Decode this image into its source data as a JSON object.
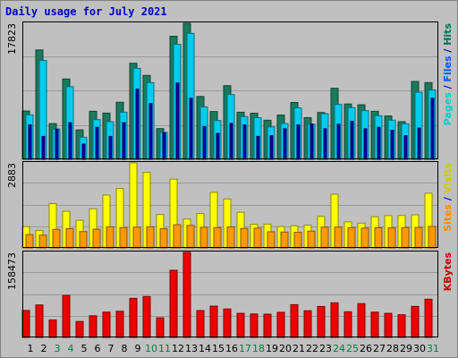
{
  "chart_data": {
    "type": "bar",
    "title": "Daily usage for July 2021",
    "categories": [
      "1",
      "2",
      "3",
      "4",
      "5",
      "6",
      "7",
      "8",
      "9",
      "10",
      "11",
      "12",
      "13",
      "14",
      "15",
      "16",
      "17",
      "18",
      "19",
      "20",
      "21",
      "22",
      "23",
      "24",
      "25",
      "26",
      "27",
      "28",
      "29",
      "30",
      "31"
    ],
    "weekend_days": [
      "3",
      "4",
      "10",
      "11",
      "17",
      "18",
      "24",
      "25",
      "31"
    ],
    "panels": [
      {
        "name": "hits",
        "ymax_label": "17823",
        "ylim": [
          0,
          17823
        ],
        "grid": true,
        "side_label": [
          {
            "text": "Pages",
            "color": "#00cccc"
          },
          {
            "text": " / ",
            "color": "#0000aa"
          },
          {
            "text": "Files",
            "color": "#0055ff"
          },
          {
            "text": " / ",
            "color": "#0000aa"
          },
          {
            "text": "Hits",
            "color": "#006f55"
          }
        ],
        "series": [
          {
            "name": "Hits",
            "color": "#1a7a5c",
            "values": [
              6325,
              14330,
              4675,
              10520,
              3850,
              6290,
              6050,
              7480,
              12580,
              10990,
              4020,
              16120,
              17823,
              8230,
              6260,
              9650,
              6170,
              6040,
              5120,
              5800,
              7440,
              5460,
              6130,
              9300,
              7250,
              7140,
              6290,
              5680,
              4930,
              10200,
              10050
            ]
          },
          {
            "name": "Files",
            "color": "#00ccee",
            "values": [
              5830,
              12940,
              3960,
              9510,
              2890,
              5200,
              4930,
              6180,
              11920,
              10050,
              3520,
              15060,
              16500,
              6860,
              5080,
              8480,
              5600,
              5450,
              4240,
              4680,
              6740,
              4620,
              5970,
              7190,
              6770,
              6380,
              5710,
              5120,
              4660,
              8790,
              9080
            ]
          },
          {
            "name": "Pages",
            "color": "#0000aa",
            "values": [
              4500,
              3000,
              3960,
              4800,
              2000,
              4200,
              3000,
              4800,
              9200,
              7300,
              3500,
              10000,
              8000,
              4300,
              3400,
              4700,
              4500,
              3000,
              3100,
              4000,
              4500,
              4600,
              4000,
              4600,
              5000,
              4000,
              4200,
              3800,
              3100,
              4100,
              8000
            ]
          }
        ]
      },
      {
        "name": "visits",
        "ymax_label": "2883",
        "ylim": [
          0,
          2883
        ],
        "grid": true,
        "side_label": [
          {
            "text": "Sites",
            "color": "#ff8800"
          },
          {
            "text": " / ",
            "color": "#0000aa"
          },
          {
            "text": "Visits",
            "color": "#cccc00"
          }
        ],
        "series": [
          {
            "name": "Visits",
            "color": "#ffff00",
            "values": [
              722,
              597,
              1503,
              1243,
              938,
              1327,
              1791,
              2014,
              2883,
              2560,
              1132,
              2332,
              979,
              1166,
              1884,
              1659,
              1210,
              798,
              808,
              723,
              751,
              770,
              1066,
              1820,
              883,
              840,
              1057,
              1095,
              1100,
              1121,
              1853
            ]
          },
          {
            "name": "Sites",
            "color": "#ff9900",
            "values": [
              452,
              433,
              630,
              652,
              554,
              634,
              718,
              690,
              705,
              719,
              650,
              786,
              764,
              700,
              688,
              713,
              659,
              668,
              548,
              538,
              530,
              569,
              706,
              708,
              684,
              672,
              684,
              680,
              691,
              694,
              729
            ]
          }
        ]
      },
      {
        "name": "kbytes",
        "ymax_label": "158473",
        "ylim": [
          0,
          158473
        ],
        "grid": true,
        "side_label": [
          {
            "text": "KBytes",
            "color": "#cc0000"
          }
        ],
        "series": [
          {
            "name": "KBytes",
            "color": "#ee0000",
            "values": [
              50200,
              60500,
              32600,
              78400,
              29700,
              40300,
              47200,
              48700,
              72900,
              76300,
              36600,
              125200,
              158473,
              50000,
              58300,
              53000,
              44900,
              43700,
              43300,
              46800,
              61000,
              49700,
              57700,
              64500,
              47800,
              63000,
              47100,
              44900,
              42300,
              57900,
              71200
            ]
          }
        ]
      }
    ]
  }
}
